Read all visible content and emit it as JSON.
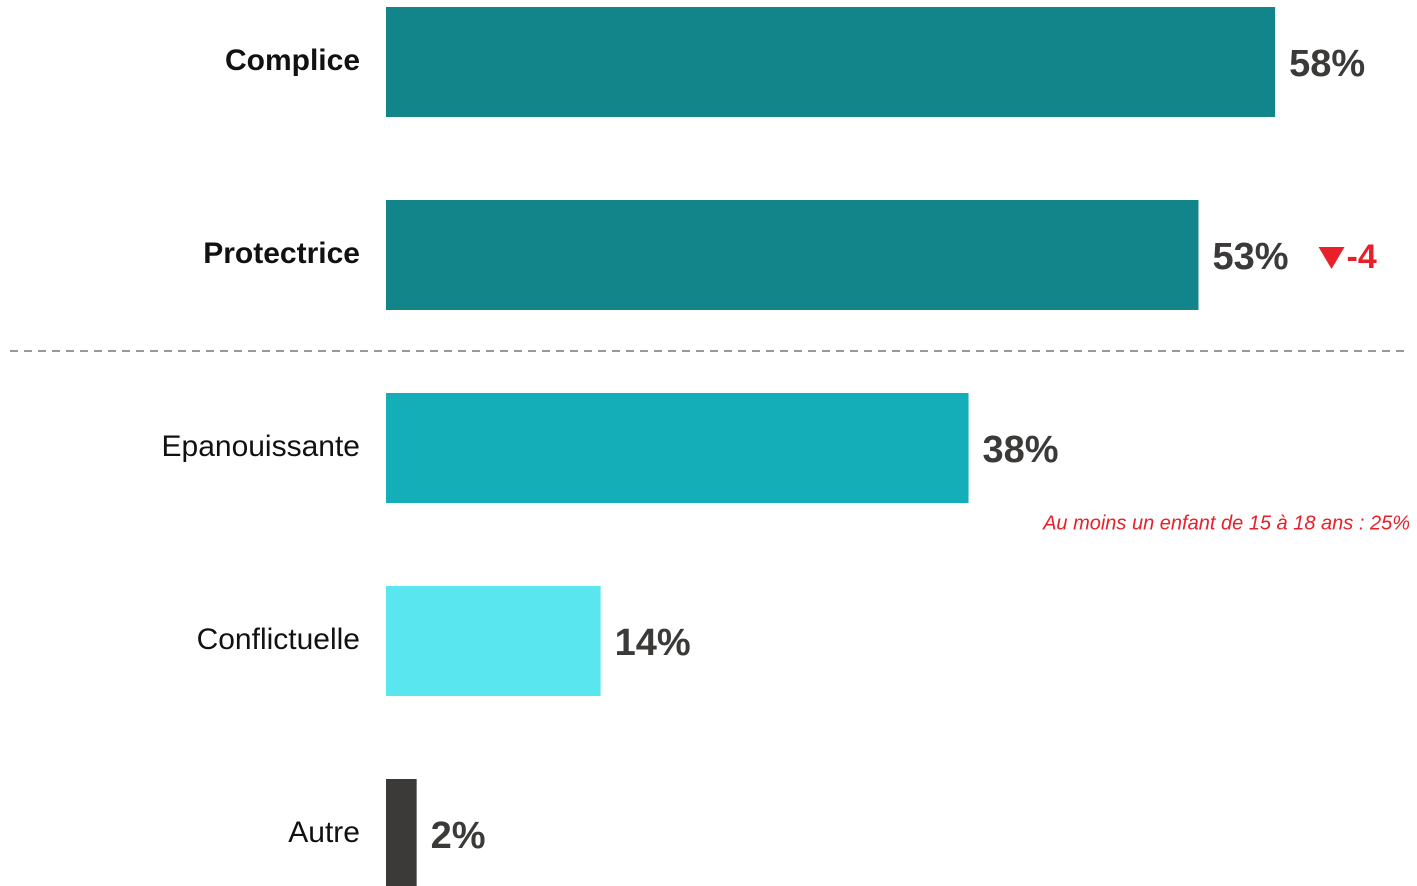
{
  "chart_data": {
    "type": "bar",
    "orientation": "horizontal",
    "categories": [
      "Complice",
      "Protectrice",
      "Epanouissante",
      "Conflictuelle",
      "Autre"
    ],
    "values": [
      58,
      53,
      38,
      14,
      2
    ],
    "value_labels": [
      "58%",
      "53%",
      "38%",
      "14%",
      "2%"
    ],
    "colors": [
      "#12858a",
      "#12858a",
      "#14aeb8",
      "#5ae6ee",
      "#3b3a39"
    ],
    "changes": [
      null,
      -4,
      null,
      null,
      null
    ],
    "note": "Au moins un enfant de 15 à 18 ans : 25%"
  }
}
